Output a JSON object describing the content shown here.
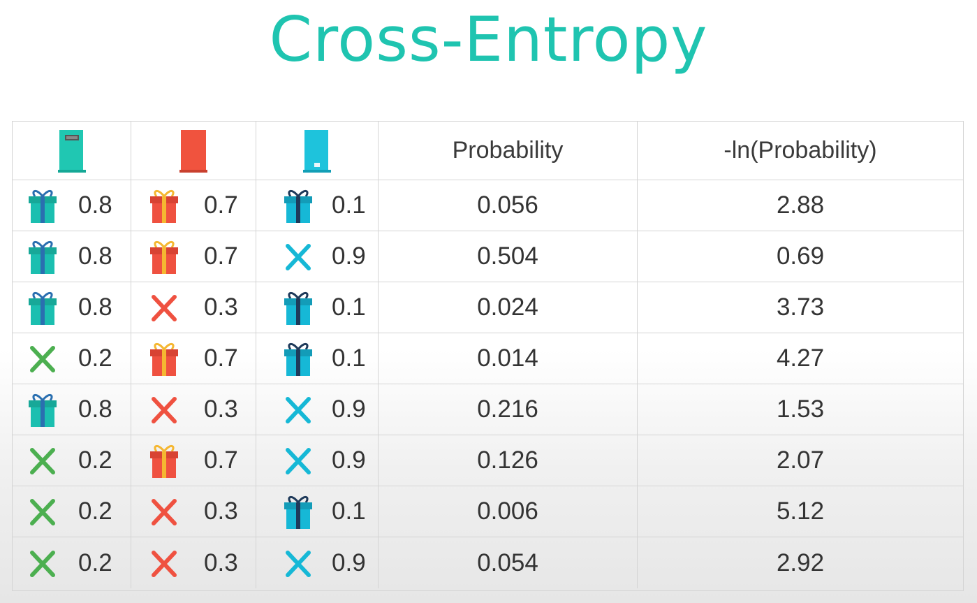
{
  "title": "Cross-Entropy",
  "colors": {
    "title": "#1fc4b0",
    "door1": "#20c7b2",
    "door2": "#f0533e",
    "door3": "#1ec3dc",
    "gift_teal": "#1bbfb0",
    "gift_red": "#ef5140",
    "gift_cyan": "#16b8d6",
    "x_green": "#4caf50",
    "x_red": "#ef5140",
    "x_cyan": "#16b8d6"
  },
  "headers": {
    "door1_icon": "teal-door-icon",
    "door2_icon": "red-door-icon",
    "door3_icon": "cyan-door-icon",
    "probability": "Probability",
    "neg_ln": "-ln(Probability)"
  },
  "rows": [
    {
      "c1": {
        "icon": "gift",
        "v": "0.8"
      },
      "c2": {
        "icon": "gift",
        "v": "0.7"
      },
      "c3": {
        "icon": "gift",
        "v": "0.1"
      },
      "p": "0.056",
      "ln": "2.88"
    },
    {
      "c1": {
        "icon": "gift",
        "v": "0.8"
      },
      "c2": {
        "icon": "gift",
        "v": "0.7"
      },
      "c3": {
        "icon": "x",
        "v": "0.9"
      },
      "p": "0.504",
      "ln": "0.69"
    },
    {
      "c1": {
        "icon": "gift",
        "v": "0.8"
      },
      "c2": {
        "icon": "x",
        "v": "0.3"
      },
      "c3": {
        "icon": "gift",
        "v": "0.1"
      },
      "p": "0.024",
      "ln": "3.73"
    },
    {
      "c1": {
        "icon": "x",
        "v": "0.2"
      },
      "c2": {
        "icon": "gift",
        "v": "0.7"
      },
      "c3": {
        "icon": "gift",
        "v": "0.1"
      },
      "p": "0.014",
      "ln": "4.27"
    },
    {
      "c1": {
        "icon": "gift",
        "v": "0.8"
      },
      "c2": {
        "icon": "x",
        "v": "0.3"
      },
      "c3": {
        "icon": "x",
        "v": "0.9"
      },
      "p": "0.216",
      "ln": "1.53"
    },
    {
      "c1": {
        "icon": "x",
        "v": "0.2"
      },
      "c2": {
        "icon": "gift",
        "v": "0.7"
      },
      "c3": {
        "icon": "x",
        "v": "0.9"
      },
      "p": "0.126",
      "ln": "2.07"
    },
    {
      "c1": {
        "icon": "x",
        "v": "0.2"
      },
      "c2": {
        "icon": "x",
        "v": "0.3"
      },
      "c3": {
        "icon": "gift",
        "v": "0.1"
      },
      "p": "0.006",
      "ln": "5.12"
    },
    {
      "c1": {
        "icon": "x",
        "v": "0.2"
      },
      "c2": {
        "icon": "x",
        "v": "0.3"
      },
      "c3": {
        "icon": "x",
        "v": "0.9"
      },
      "p": "0.054",
      "ln": "2.92"
    }
  ]
}
